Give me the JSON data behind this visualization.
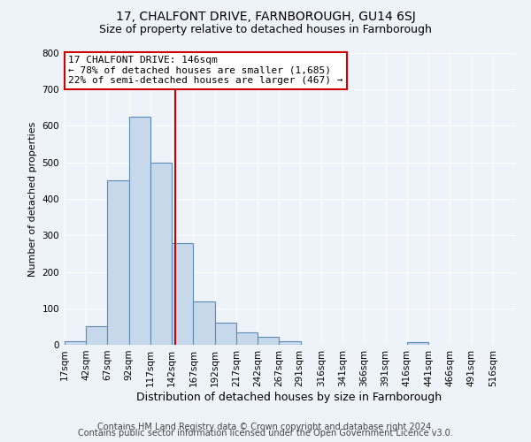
{
  "title": "17, CHALFONT DRIVE, FARNBOROUGH, GU14 6SJ",
  "subtitle": "Size of property relative to detached houses in Farnborough",
  "xlabel": "Distribution of detached houses by size in Farnborough",
  "ylabel": "Number of detached properties",
  "footer_lines": [
    "Contains HM Land Registry data © Crown copyright and database right 2024.",
    "Contains public sector information licensed under the Open Government Licence v3.0."
  ],
  "bin_labels": [
    "17sqm",
    "42sqm",
    "67sqm",
    "92sqm",
    "117sqm",
    "142sqm",
    "167sqm",
    "192sqm",
    "217sqm",
    "242sqm",
    "267sqm",
    "291sqm",
    "316sqm",
    "341sqm",
    "366sqm",
    "391sqm",
    "416sqm",
    "441sqm",
    "466sqm",
    "491sqm",
    "516sqm"
  ],
  "bin_left_edges": [
    17,
    42,
    67,
    92,
    117,
    142,
    167,
    192,
    217,
    242,
    267,
    291,
    316,
    341,
    366,
    391,
    416,
    441,
    466,
    491,
    516
  ],
  "bin_width": 25,
  "bar_heights": [
    10,
    50,
    450,
    625,
    500,
    280,
    118,
    60,
    35,
    22,
    10,
    0,
    0,
    0,
    0,
    0,
    8,
    0,
    0,
    0
  ],
  "bar_color": "#c8d8eb",
  "bar_edge_color": "#5a8db5",
  "property_size": 146,
  "vline_color": "#cc0000",
  "annotation_title": "17 CHALFONT DRIVE: 146sqm",
  "annotation_line1": "← 78% of detached houses are smaller (1,685)",
  "annotation_line2": "22% of semi-detached houses are larger (467) →",
  "annotation_box_edge_color": "#cc0000",
  "annotation_bg_color": "#ffffff",
  "annotation_text_color": "#000000",
  "ylim": [
    0,
    800
  ],
  "yticks": [
    0,
    100,
    200,
    300,
    400,
    500,
    600,
    700,
    800
  ],
  "background_color": "#eef2f9",
  "grid_color": "#ffffff",
  "title_fontsize": 10,
  "subtitle_fontsize": 9,
  "annotation_fontsize": 8,
  "xlabel_fontsize": 9,
  "ylabel_fontsize": 8,
  "tick_fontsize": 7.5,
  "footer_fontsize": 7
}
